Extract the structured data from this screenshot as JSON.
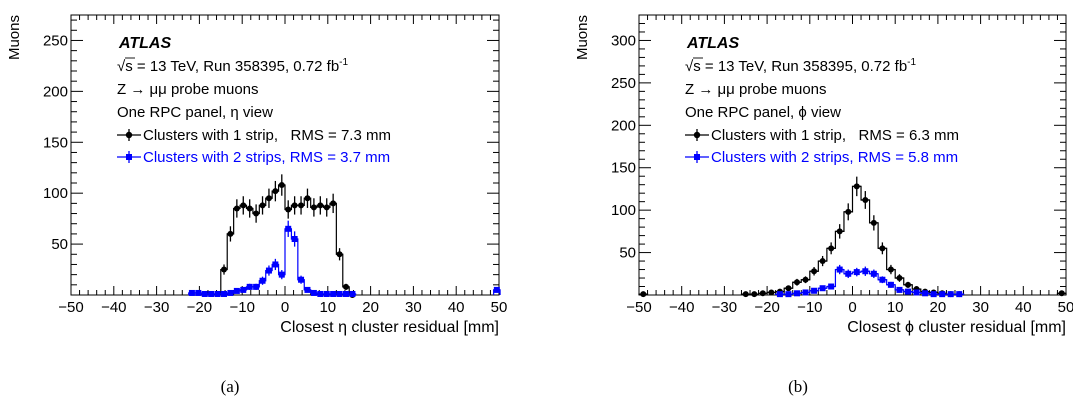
{
  "chart_data": [
    {
      "type": "histogram",
      "panel_label": "(a)",
      "ylabel": "Muons",
      "xlabel": "Closest η cluster residual [mm]",
      "xlim": [
        -50,
        50
      ],
      "ylim": [
        0,
        275
      ],
      "xticks": [
        -50,
        -40,
        -30,
        -20,
        -10,
        0,
        10,
        20,
        30,
        40,
        50
      ],
      "yticks": [
        50,
        100,
        150,
        200,
        250
      ],
      "experiment": "ATLAS",
      "annotations": [
        "√s = 13 TeV, Run 358395, 0.72 fb",
        "Z → μμ probe muons",
        "One RPC panel, η view"
      ],
      "lumi_sup": "-1",
      "bin_width": 1.5,
      "series": [
        {
          "name": "Clusters with 1 strip,   RMS = 7.3 mm",
          "color": "#000000",
          "marker": "circle",
          "x": [
            -14.25,
            -12.75,
            -11.25,
            -9.75,
            -8.25,
            -6.75,
            -5.25,
            -3.75,
            -2.25,
            -0.75,
            0.75,
            2.25,
            3.75,
            5.25,
            6.75,
            8.25,
            9.75,
            11.25,
            12.75,
            14.25,
            15.75
          ],
          "values": [
            25,
            60,
            85,
            88,
            85,
            80,
            88,
            95,
            102,
            108,
            84,
            88,
            88,
            95,
            86,
            88,
            86,
            90,
            40,
            8,
            0
          ],
          "errors": [
            5,
            7.5,
            9,
            9,
            9,
            9,
            9,
            9.5,
            10,
            10.5,
            9,
            9,
            9,
            9.5,
            9,
            9,
            9,
            9.5,
            6,
            3,
            0
          ]
        },
        {
          "name": "Clusters with 2 strips, RMS = 3.7 mm",
          "color": "#0000ff",
          "marker": "square",
          "x": [
            -21.75,
            -20.25,
            -18.75,
            -17.25,
            -15.75,
            -14.25,
            -12.75,
            -11.25,
            -9.75,
            -8.25,
            -6.75,
            -5.25,
            -3.75,
            -2.25,
            -0.75,
            0.75,
            2.25,
            3.75,
            5.25,
            6.75,
            8.25,
            9.75,
            11.25,
            12.75,
            14.25,
            15.75,
            49.5
          ],
          "values": [
            2,
            2,
            1,
            1,
            1,
            1,
            2,
            4,
            5,
            8,
            8,
            14,
            24,
            30,
            20,
            65,
            55,
            15,
            5,
            2,
            1,
            1,
            1,
            1,
            1,
            1,
            5
          ],
          "errors": [
            1,
            1,
            1,
            1,
            1,
            1,
            1,
            2,
            2,
            3,
            3,
            4,
            5,
            5.5,
            4.5,
            8,
            7.5,
            4,
            2,
            1,
            1,
            1,
            1,
            1,
            1,
            1,
            2
          ]
        }
      ]
    },
    {
      "type": "histogram",
      "panel_label": "(b)",
      "ylabel": "Muons",
      "xlabel": "Closest ϕ cluster residual [mm]",
      "xlim": [
        -50,
        50
      ],
      "ylim": [
        0,
        330
      ],
      "xticks": [
        -50,
        -40,
        -30,
        -20,
        -10,
        0,
        10,
        20,
        30,
        40,
        50
      ],
      "yticks": [
        50,
        100,
        150,
        200,
        250,
        300
      ],
      "experiment": "ATLAS",
      "annotations": [
        "√s = 13 TeV, Run 358395, 0.72 fb",
        "Z → μμ probe muons",
        "One RPC panel, ϕ view"
      ],
      "lumi_sup": "-1",
      "bin_width": 2.0,
      "series": [
        {
          "name": "Clusters with 1 strip,   RMS = 6.3 mm",
          "color": "#000000",
          "marker": "circle",
          "x": [
            -49,
            -25,
            -23,
            -21,
            -19,
            -17,
            -15,
            -13,
            -11,
            -9,
            -7,
            -5,
            -3,
            -1,
            1,
            3,
            5,
            7,
            9,
            11,
            13,
            15,
            17,
            19,
            21,
            23,
            25,
            49
          ],
          "values": [
            1,
            1,
            1,
            2,
            3,
            4,
            8,
            15,
            18,
            28,
            40,
            55,
            75,
            98,
            128,
            112,
            85,
            55,
            30,
            20,
            12,
            7,
            4,
            3,
            2,
            1,
            1,
            2
          ],
          "errors": [
            1,
            1,
            1,
            1,
            2,
            2,
            3,
            4,
            4,
            5,
            6,
            7,
            8.5,
            10,
            11.5,
            10.5,
            9,
            7,
            5.5,
            4.5,
            3.5,
            2.5,
            2,
            2,
            1,
            1,
            1,
            1
          ]
        },
        {
          "name": "Clusters with 2 strips, RMS = 5.8 mm",
          "color": "#0000ff",
          "marker": "square",
          "x": [
            -17,
            -15,
            -13,
            -11,
            -9,
            -7,
            -5,
            -3,
            -1,
            1,
            3,
            5,
            7,
            9,
            11,
            13,
            15,
            17,
            19,
            21,
            23,
            25
          ],
          "values": [
            1,
            1,
            2,
            3,
            5,
            8,
            10,
            30,
            25,
            27,
            28,
            25,
            18,
            12,
            6,
            4,
            3,
            2,
            1,
            1,
            1,
            1
          ],
          "errors": [
            1,
            1,
            1,
            2,
            2,
            3,
            3,
            5.5,
            5,
            5,
            5.5,
            5,
            4,
            3.5,
            2.5,
            2,
            2,
            1,
            1,
            1,
            1,
            1
          ]
        }
      ]
    }
  ]
}
